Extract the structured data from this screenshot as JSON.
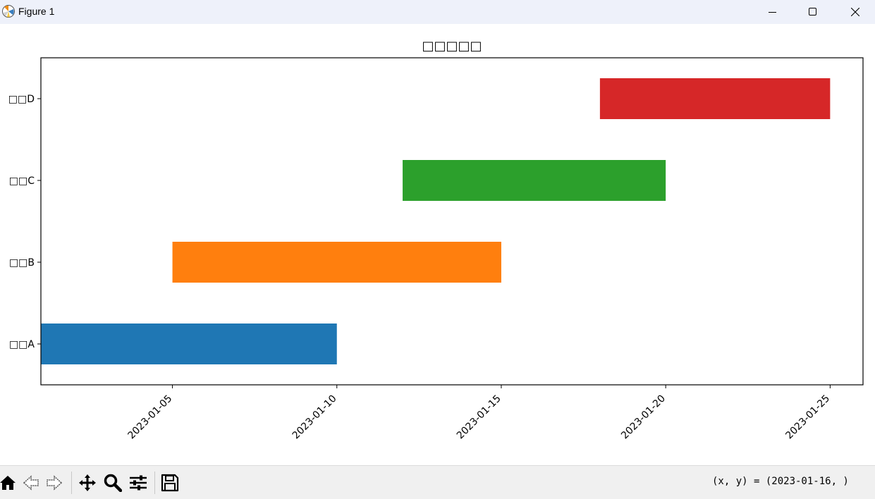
{
  "window": {
    "title": "Figure 1",
    "icon": "matplotlib-icon",
    "controls": [
      "minimize-icon",
      "maximize-icon",
      "close-icon"
    ]
  },
  "chart_data": {
    "type": "bar",
    "orientation": "horizontal",
    "title": "□□□□□",
    "xlabel": "",
    "ylabel": "",
    "categories": [
      "□□A",
      "□□B",
      "□□C",
      "□□D"
    ],
    "tasks": [
      {
        "label": "□□A",
        "start": "2023-01-01",
        "end": "2023-01-10",
        "color": "#1f77b4"
      },
      {
        "label": "□□B",
        "start": "2023-01-05",
        "end": "2023-01-15",
        "color": "#ff7f0e"
      },
      {
        "label": "□□C",
        "start": "2023-01-12",
        "end": "2023-01-20",
        "color": "#2ca02c"
      },
      {
        "label": "□□D",
        "start": "2023-01-18",
        "end": "2023-01-25",
        "color": "#d62728"
      }
    ],
    "xticks": [
      "2023-01-05",
      "2023-01-10",
      "2023-01-15",
      "2023-01-20",
      "2023-01-25"
    ],
    "xlim": [
      "2023-01-01",
      "2023-01-26"
    ],
    "xtick_rotation": 45,
    "grid": false,
    "legend": "none"
  },
  "toolbar": {
    "icons": [
      "home-icon",
      "back-icon",
      "forward-icon",
      "pan-icon",
      "zoom-icon",
      "configure-subplots-icon",
      "save-icon"
    ],
    "coords": "(x, y) = (2023-01-16, )"
  }
}
